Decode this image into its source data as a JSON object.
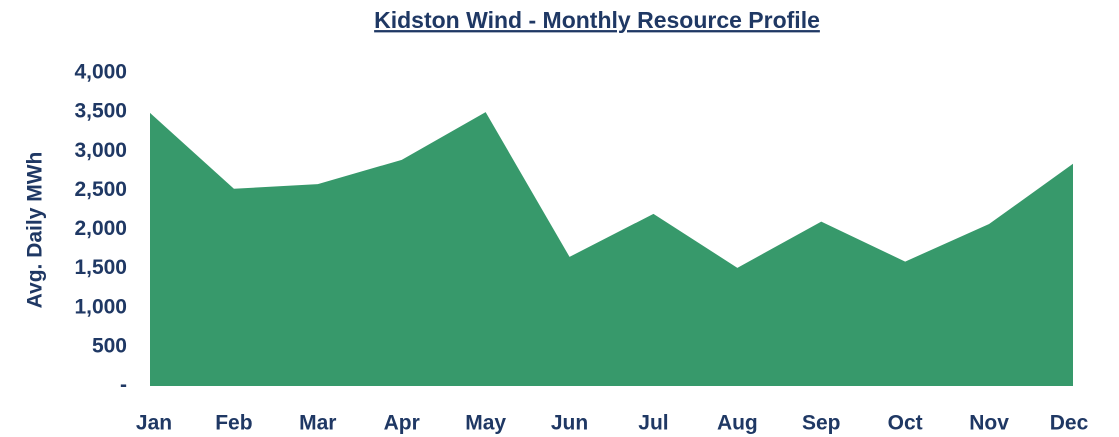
{
  "chart_data": {
    "type": "area",
    "title": "Kidston Wind - Monthly Resource Profile",
    "y_label": "Avg. Daily MWh",
    "categories": [
      "Jan",
      "Feb",
      "Mar",
      "Apr",
      "May",
      "Jun",
      "Jul",
      "Aug",
      "Sep",
      "Oct",
      "Nov",
      "Dec"
    ],
    "values": [
      3490,
      2520,
      2580,
      2890,
      3500,
      1650,
      2200,
      1510,
      2100,
      1590,
      2070,
      2840
    ],
    "color": "#37996b",
    "ylim": [
      0,
      4000
    ],
    "yticks": [
      {
        "value": 0,
        "label": "-"
      },
      500,
      {
        "value": 1000,
        "label": "1,000"
      },
      {
        "value": 1500,
        "label": "1,500"
      },
      {
        "value": 2000,
        "label": "2,000"
      },
      {
        "value": 2500,
        "label": "2,500"
      },
      {
        "value": 3000,
        "label": "3,000"
      },
      {
        "value": 3500,
        "label": "3,500"
      },
      {
        "value": 4000,
        "label": "4,000"
      }
    ],
    "grid": false
  }
}
